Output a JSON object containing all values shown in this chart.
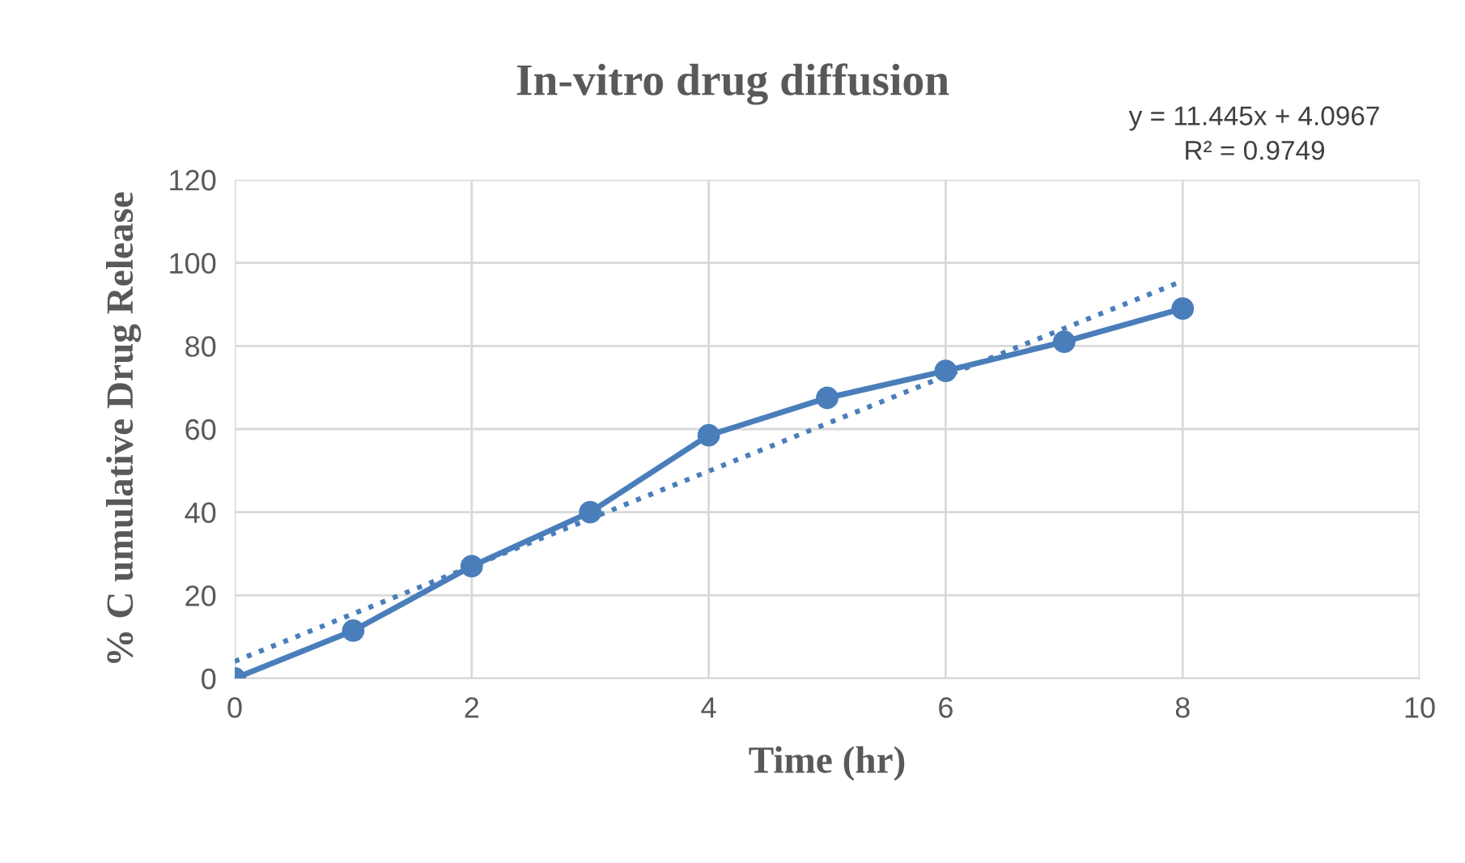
{
  "chart_data": {
    "type": "line",
    "title": "In-vitro drug diffusion",
    "xlabel": "Time (hr)",
    "ylabel": "% C umulative Drug Release",
    "annotations": [
      "y = 11.445x + 4.0967",
      "R² = 0.9749"
    ],
    "x": [
      0,
      1,
      2,
      3,
      4,
      5,
      6,
      7,
      8
    ],
    "series": [
      {
        "color": "#4a7ebb",
        "values": [
          0,
          11.5,
          27,
          40,
          58.5,
          67.5,
          74,
          81,
          89
        ],
        "marker": "circle",
        "line_style": "solid"
      },
      {
        "type": "line",
        "x": [
          0,
          8
        ],
        "color": "#4a7ebb",
        "values": [
          4.0967,
          95.66
        ],
        "marker": "none",
        "line_style": "dotted"
      }
    ],
    "xlim": [
      0,
      10
    ],
    "xticks": [
      0,
      2,
      4,
      6,
      8,
      10
    ],
    "ylim": [
      0,
      120
    ],
    "yticks": [
      0,
      20,
      40,
      60,
      80,
      100,
      120
    ],
    "grid": true,
    "legend": false
  }
}
